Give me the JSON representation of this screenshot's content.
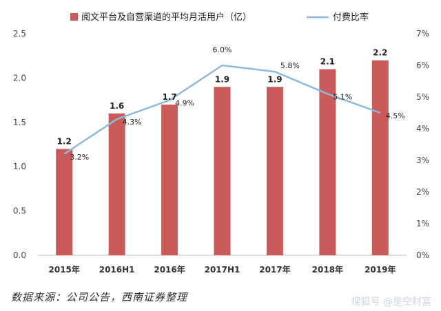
{
  "chart_data": {
    "type": "bar+line",
    "categories": [
      "2015年",
      "2016H1",
      "2016年",
      "2017H1",
      "2017年",
      "2018年",
      "2019年"
    ],
    "series": [
      {
        "name": "阅文平台及自营渠道的平均月活用户（亿）",
        "type": "bar",
        "axis": "left",
        "values": [
          1.2,
          1.6,
          1.7,
          1.9,
          1.9,
          2.1,
          2.2
        ],
        "labels": [
          "1.2",
          "1.6",
          "1.7",
          "1.9",
          "1.9",
          "2.1",
          "2.2"
        ],
        "color": "#c95b5b"
      },
      {
        "name": "付费比率",
        "type": "line",
        "axis": "right",
        "values": [
          3.2,
          4.3,
          4.9,
          6.0,
          5.8,
          5.1,
          4.5
        ],
        "labels": [
          "3.2%",
          "4.3%",
          "4.9%",
          "6.0%",
          "5.8%",
          "5.1%",
          "4.5%"
        ],
        "color": "#8db8e0"
      }
    ],
    "y_left": {
      "range": [
        0,
        2.5
      ],
      "ticks": [
        "0.0",
        "0.5",
        "1.0",
        "1.5",
        "2.0",
        "2.5"
      ]
    },
    "y_right": {
      "range": [
        0,
        7
      ],
      "ticks": [
        "0%",
        "1%",
        "2%",
        "3%",
        "4%",
        "5%",
        "6%",
        "7%"
      ]
    },
    "grid": false,
    "legend_position": "top"
  },
  "footer": {
    "source": "数据来源：公司公告，西南证券整理",
    "watermark": "搜狐号 @星空财富"
  }
}
